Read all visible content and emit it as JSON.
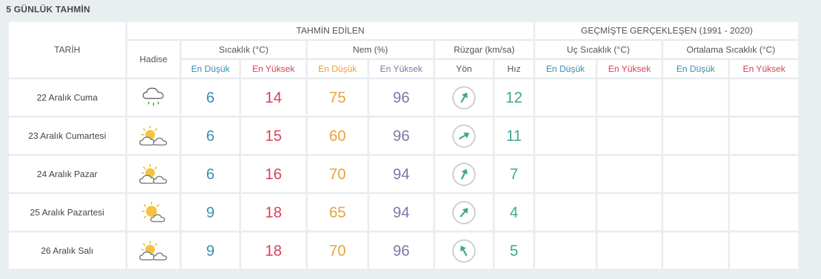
{
  "title": "5 GÜNLÜK TAHMİN",
  "headers": {
    "date": "TARİH",
    "forecast_group": "TAHMİN EDİLEN",
    "history_group": "GEÇMİŞTE GERÇEKLEŞEN (1991 - 2020)",
    "event": "Hadise",
    "temp": "Sıcaklık (°C)",
    "humidity": "Nem (%)",
    "wind": "Rüzgar (km/sa)",
    "extreme_temp": "Uç Sıcaklık (°C)",
    "avg_temp": "Ortalama Sıcaklık (°C)",
    "low": "En Düşük",
    "high": "En Yüksek",
    "direction": "Yön",
    "speed": "Hız"
  },
  "colors": {
    "low": "#3d8cb5",
    "high": "#d9425a",
    "humidity_low": "#e8a23a",
    "humidity_high": "#7b79a8",
    "wind": "#3aa993"
  },
  "rows": [
    {
      "date": "22 Aralık Cuma",
      "icon": "rain-cloud-icon",
      "temp_low": "6",
      "temp_high": "14",
      "hum_low": "75",
      "hum_high": "96",
      "wind_dir_deg": 30,
      "wind_speed": "12"
    },
    {
      "date": "23 Aralık Cumartesi",
      "icon": "partly-cloudy-icon",
      "temp_low": "6",
      "temp_high": "15",
      "hum_low": "60",
      "hum_high": "96",
      "wind_dir_deg": 60,
      "wind_speed": "11"
    },
    {
      "date": "24 Aralık Pazar",
      "icon": "partly-cloudy-icon",
      "temp_low": "6",
      "temp_high": "16",
      "hum_low": "70",
      "hum_high": "94",
      "wind_dir_deg": 25,
      "wind_speed": "7"
    },
    {
      "date": "25 Aralık Pazartesi",
      "icon": "mostly-sunny-icon",
      "temp_low": "9",
      "temp_high": "18",
      "hum_low": "65",
      "hum_high": "94",
      "wind_dir_deg": 40,
      "wind_speed": "4"
    },
    {
      "date": "26 Aralık Salı",
      "icon": "partly-cloudy-icon",
      "temp_low": "9",
      "temp_high": "18",
      "hum_low": "70",
      "hum_high": "96",
      "wind_dir_deg": -30,
      "wind_speed": "5"
    }
  ]
}
